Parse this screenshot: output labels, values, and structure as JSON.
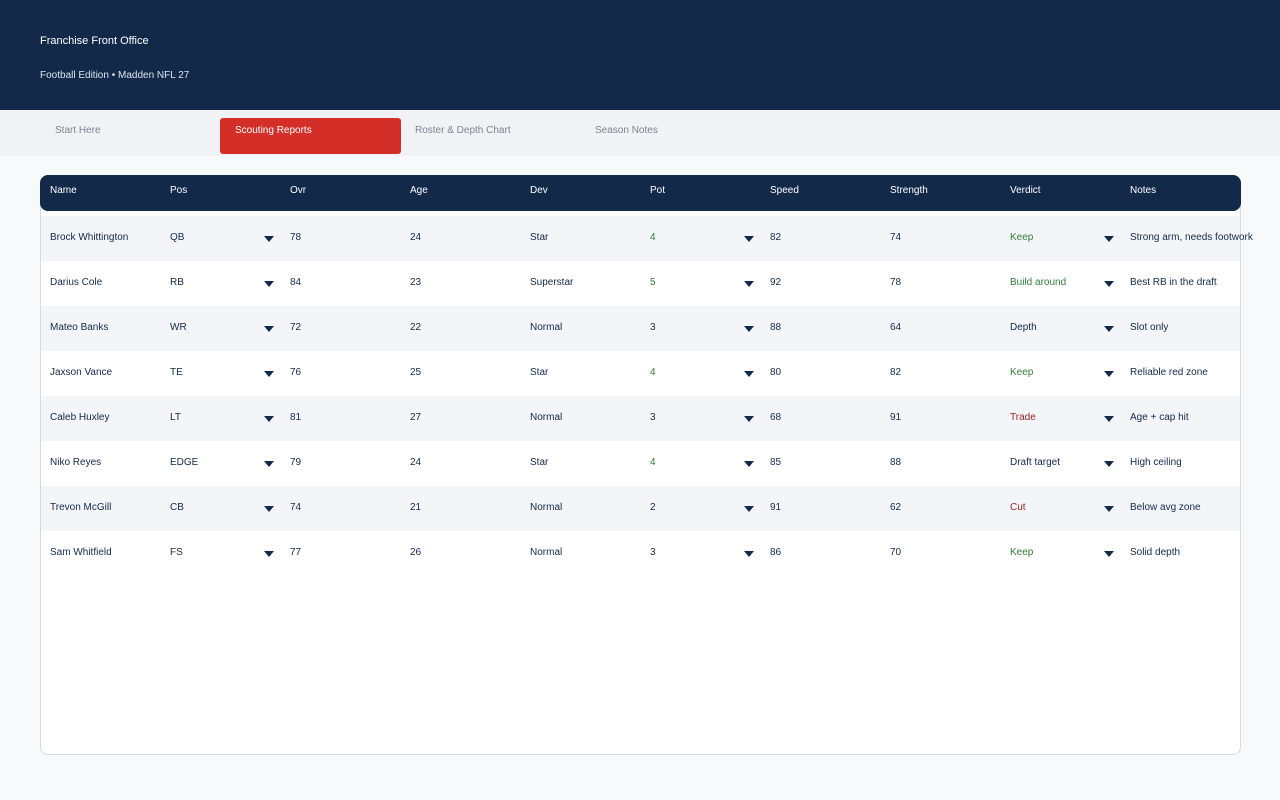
{
  "header": {
    "title": "Franchise Front Office",
    "subtitle": "Football Edition • Madden NFL 27"
  },
  "tabs": [
    {
      "label": "Start Here",
      "active": false
    },
    {
      "label": "Scouting Reports",
      "active": true
    },
    {
      "label": "Roster & Depth Chart",
      "active": false
    },
    {
      "label": "Season Notes",
      "active": false
    }
  ],
  "table": {
    "columns": [
      "Name",
      "Pos",
      "Ovr",
      "Age",
      "Dev",
      "Pot",
      "Speed",
      "Strength",
      "Verdict",
      "Notes"
    ],
    "rows": [
      {
        "name": "Brock Whittington",
        "pos": "QB",
        "ovr": "78",
        "age": "24",
        "dev": "Star",
        "pot": "4",
        "speed": "82",
        "strength": "74",
        "verdict": "Keep",
        "notes": "Strong arm, needs footwork"
      },
      {
        "name": "Darius Cole",
        "pos": "RB",
        "ovr": "84",
        "age": "23",
        "dev": "Superstar",
        "pot": "5",
        "speed": "92",
        "strength": "78",
        "verdict": "Build around",
        "notes": "Best RB in the draft"
      },
      {
        "name": "Mateo Banks",
        "pos": "WR",
        "ovr": "72",
        "age": "22",
        "dev": "Normal",
        "pot": "3",
        "speed": "88",
        "strength": "64",
        "verdict": "Depth",
        "notes": "Slot only"
      },
      {
        "name": "Jaxson Vance",
        "pos": "TE",
        "ovr": "76",
        "age": "25",
        "dev": "Star",
        "pot": "4",
        "speed": "80",
        "strength": "82",
        "verdict": "Keep",
        "notes": "Reliable red zone"
      },
      {
        "name": "Caleb Huxley",
        "pos": "LT",
        "ovr": "81",
        "age": "27",
        "dev": "Normal",
        "pot": "3",
        "speed": "68",
        "strength": "91",
        "verdict": "Trade",
        "notes": "Age + cap hit"
      },
      {
        "name": "Niko Reyes",
        "pos": "EDGE",
        "ovr": "79",
        "age": "24",
        "dev": "Star",
        "pot": "4",
        "speed": "85",
        "strength": "88",
        "verdict": "Draft target",
        "notes": "High ceiling"
      },
      {
        "name": "Trevon McGill",
        "pos": "CB",
        "ovr": "74",
        "age": "21",
        "dev": "Normal",
        "pot": "2",
        "speed": "91",
        "strength": "62",
        "verdict": "Cut",
        "notes": "Below avg zone"
      },
      {
        "name": "Sam Whitfield",
        "pos": "FS",
        "ovr": "77",
        "age": "26",
        "dev": "Normal",
        "pot": "3",
        "speed": "86",
        "strength": "70",
        "verdict": "Keep",
        "notes": "Solid depth"
      }
    ]
  },
  "colors": {
    "navy": "#13294a",
    "accent_red": "#d42e29",
    "positive_green": "#2f7d3a",
    "negative_red": "#9a1f1f"
  },
  "icons": {
    "dropdown": "chevron-down-icon"
  }
}
